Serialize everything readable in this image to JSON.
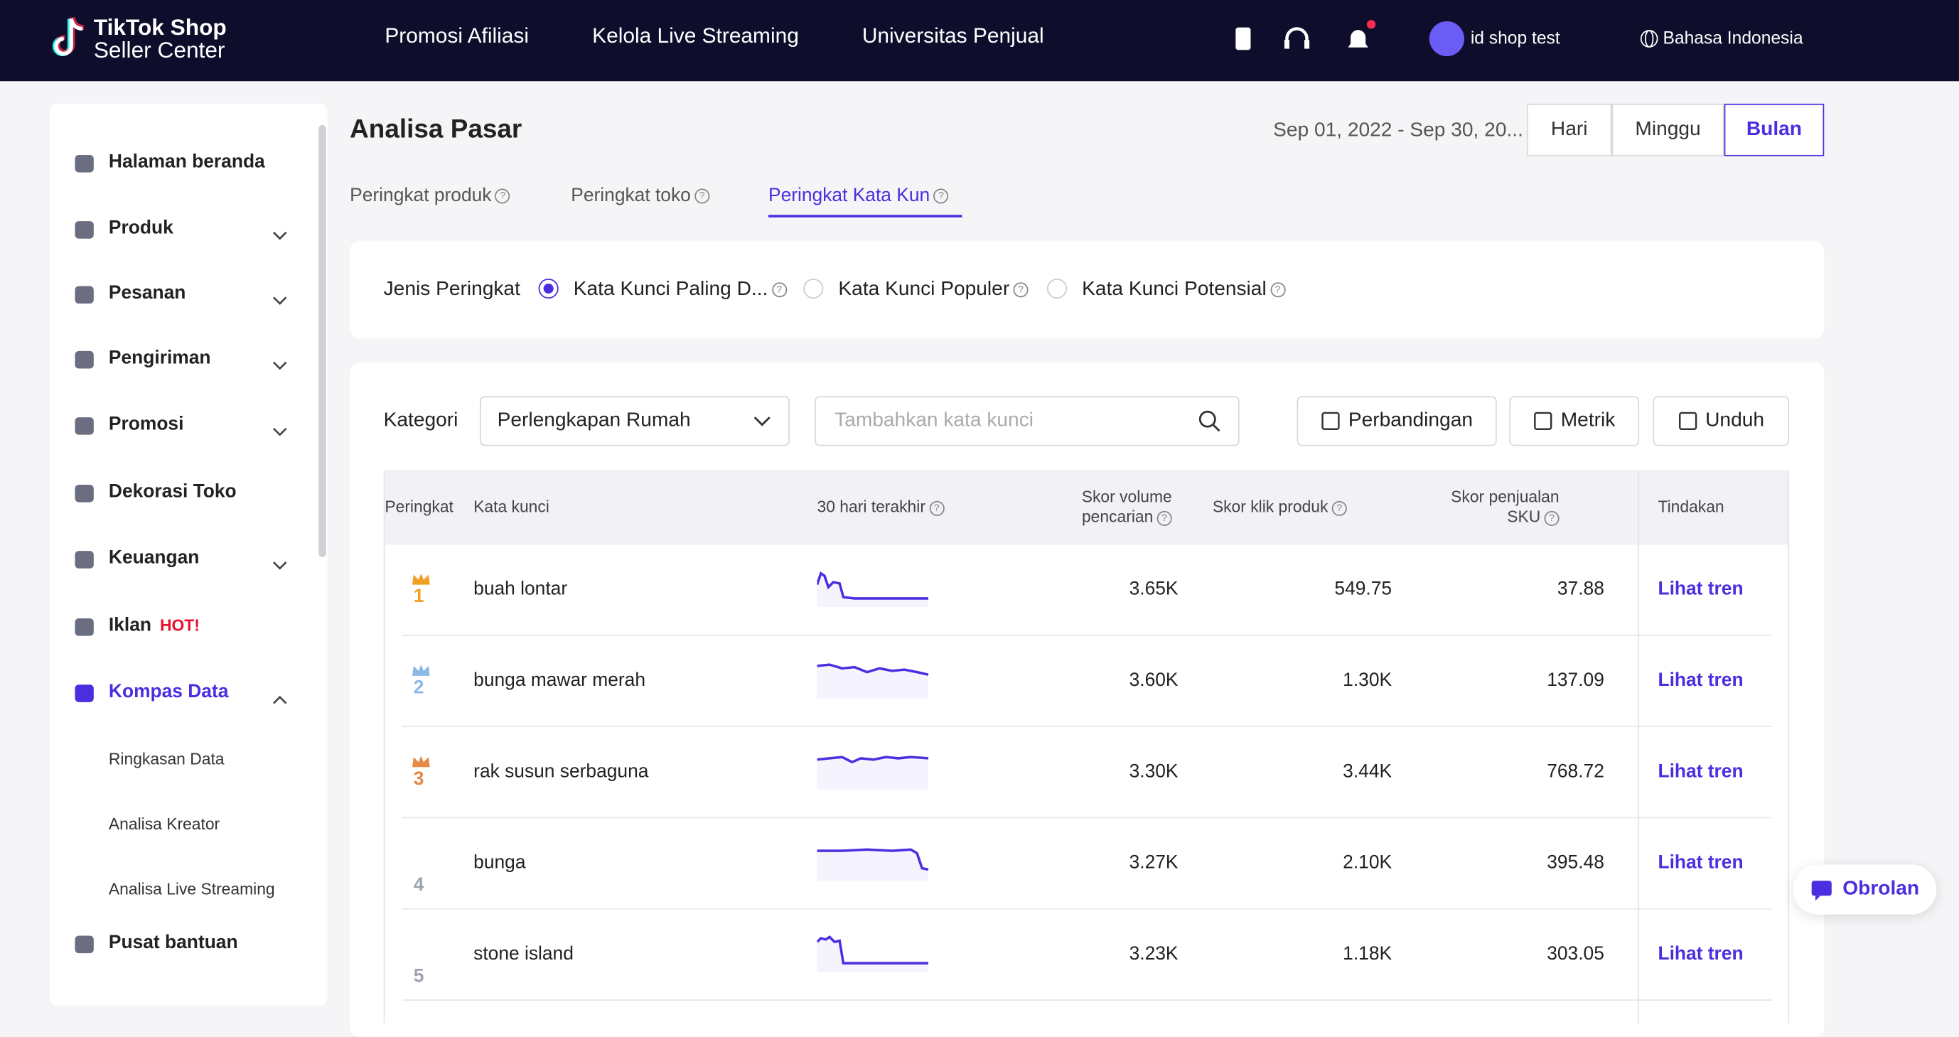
{
  "header": {
    "logo_line1": "TikTok Shop",
    "logo_line2": "Seller Center",
    "nav": [
      "Promosi Afiliasi",
      "Kelola Live Streaming",
      "Universitas Penjual"
    ],
    "shop": "id shop test",
    "language": "Bahasa Indonesia"
  },
  "sidebar": {
    "items": [
      {
        "label": "Halaman beranda"
      },
      {
        "label": "Produk"
      },
      {
        "label": "Pesanan"
      },
      {
        "label": "Pengiriman"
      },
      {
        "label": "Promosi"
      },
      {
        "label": "Dekorasi Toko"
      },
      {
        "label": "Keuangan"
      },
      {
        "label": "Iklan",
        "badge": "HOT!"
      },
      {
        "label": "Kompas Data"
      }
    ],
    "subitems": [
      "Ringkasan Data",
      "Analisa Kreator",
      "Analisa Live Streaming"
    ],
    "help": "Pusat bantuan"
  },
  "page": {
    "title": "Analisa Pasar",
    "date_range": "Sep 01, 2022 - Sep 30, 20...",
    "periods": [
      "Hari",
      "Minggu",
      "Bulan"
    ],
    "tabs": [
      "Peringkat produk",
      "Peringkat toko",
      "Peringkat Kata Kun"
    ],
    "rank_type_label": "Jenis Peringkat",
    "rank_types": [
      "Kata Kunci Paling D...",
      "Kata Kunci Populer",
      "Kata Kunci Potensial"
    ],
    "category_label": "Kategori",
    "category": "Perlengkapan Rumah",
    "search_placeholder": "Tambahkan kata kunci",
    "buttons": [
      "Perbandingan",
      "Metrik",
      "Unduh"
    ]
  },
  "table": {
    "headers": [
      "Peringkat",
      "Kata kunci",
      "30 hari terakhir",
      "Skor volume pencarian",
      "Skor klik produk",
      "Skor penjualan SKU",
      "Tindakan"
    ],
    "rows": [
      [
        "1",
        "buah lontar",
        "3.65K",
        "549.75",
        "37.88",
        "Lihat tren"
      ],
      [
        "2",
        "bunga mawar merah",
        "3.60K",
        "1.30K",
        "137.09",
        "Lihat tren"
      ],
      [
        "3",
        "rak susun serbaguna",
        "3.30K",
        "3.44K",
        "768.72",
        "Lihat tren"
      ],
      [
        "4",
        "bunga",
        "3.27K",
        "2.10K",
        "395.48",
        "Lihat tren"
      ],
      [
        "5",
        "stone island",
        "3.23K",
        "1.18K",
        "303.05",
        "Lihat tren"
      ]
    ]
  },
  "chat": "Obrolan"
}
